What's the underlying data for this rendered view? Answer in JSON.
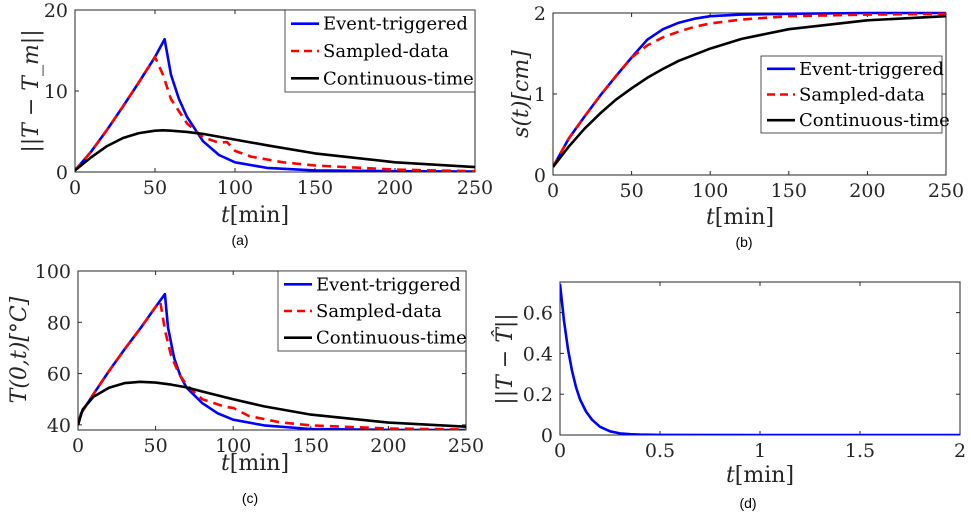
{
  "chart_data": [
    {
      "id": "a",
      "type": "line",
      "caption": "(a)",
      "xlabel_var": "t",
      "xlabel_unit": "[min]",
      "ylabel": "||T − T_m||",
      "xlim": [
        0,
        250
      ],
      "ylim": [
        0,
        20
      ],
      "xticks": [
        "0",
        "50",
        "100",
        "150",
        "200",
        "250"
      ],
      "yticks": [
        "0",
        "10",
        "20"
      ],
      "legend_position": "top-right",
      "series": [
        {
          "name": "Event-triggered",
          "color": "#0000ff",
          "dash": "solid",
          "x": [
            0,
            10,
            20,
            30,
            40,
            50,
            56,
            60,
            65,
            70,
            80,
            90,
            100,
            120,
            150,
            200,
            250
          ],
          "y": [
            0.2,
            2.5,
            5.2,
            8.1,
            11.1,
            14.2,
            16.4,
            12.0,
            9.0,
            6.8,
            3.8,
            2.1,
            1.2,
            0.5,
            0.2,
            0.1,
            0.05
          ]
        },
        {
          "name": "Sampled-data",
          "color": "#ff0000",
          "dash": "dashed",
          "x": [
            0,
            10,
            20,
            30,
            40,
            50,
            55,
            60,
            70,
            80,
            90,
            95,
            100,
            110,
            130,
            150,
            200,
            250
          ],
          "y": [
            0.2,
            2.5,
            5.2,
            8.1,
            11.1,
            14.2,
            12.0,
            9.0,
            6.0,
            4.3,
            3.6,
            3.7,
            2.6,
            1.9,
            1.2,
            0.8,
            0.3,
            0.1
          ]
        },
        {
          "name": "Continuous-time",
          "color": "#000000",
          "dash": "solid",
          "x": [
            0,
            10,
            20,
            30,
            40,
            50,
            55,
            60,
            70,
            80,
            100,
            120,
            150,
            200,
            250
          ],
          "y": [
            0.2,
            1.8,
            3.2,
            4.2,
            4.8,
            5.1,
            5.15,
            5.1,
            4.95,
            4.7,
            4.0,
            3.3,
            2.3,
            1.2,
            0.6
          ]
        }
      ]
    },
    {
      "id": "b",
      "type": "line",
      "caption": "(b)",
      "xlabel_var": "t",
      "xlabel_unit": "[min]",
      "ylabel": "s(t)[cm]",
      "xlim": [
        0,
        250
      ],
      "ylim": [
        0,
        2
      ],
      "xticks": [
        "0",
        "50",
        "100",
        "150",
        "200",
        "250"
      ],
      "yticks": [
        "0",
        "1",
        "2"
      ],
      "legend_position": "middle-right",
      "series": [
        {
          "name": "Event-triggered",
          "color": "#0000ff",
          "dash": "solid",
          "x": [
            0,
            10,
            20,
            30,
            40,
            50,
            60,
            70,
            80,
            90,
            100,
            120,
            150,
            200,
            250
          ],
          "y": [
            0.1,
            0.45,
            0.72,
            0.98,
            1.22,
            1.45,
            1.67,
            1.8,
            1.88,
            1.93,
            1.96,
            1.98,
            1.99,
            2.0,
            2.0
          ]
        },
        {
          "name": "Sampled-data",
          "color": "#ff0000",
          "dash": "dashed",
          "x": [
            0,
            10,
            20,
            30,
            40,
            50,
            60,
            70,
            80,
            90,
            100,
            120,
            150,
            200,
            250
          ],
          "y": [
            0.1,
            0.45,
            0.72,
            0.98,
            1.22,
            1.45,
            1.6,
            1.7,
            1.77,
            1.83,
            1.87,
            1.92,
            1.96,
            1.98,
            1.99
          ]
        },
        {
          "name": "Continuous-time",
          "color": "#000000",
          "dash": "solid",
          "x": [
            0,
            10,
            20,
            30,
            40,
            50,
            60,
            70,
            80,
            100,
            120,
            150,
            200,
            250
          ],
          "y": [
            0.1,
            0.35,
            0.57,
            0.76,
            0.93,
            1.07,
            1.2,
            1.31,
            1.41,
            1.56,
            1.68,
            1.8,
            1.91,
            1.96
          ]
        }
      ]
    },
    {
      "id": "c",
      "type": "line",
      "caption": "(c)",
      "xlabel_var": "t",
      "xlabel_unit": "[min]",
      "ylabel": "T(0,t)[°C]",
      "xlim": [
        0,
        250
      ],
      "ylim": [
        38,
        100
      ],
      "xticks": [
        "0",
        "50",
        "100",
        "150",
        "200",
        "250"
      ],
      "yticks": [
        "40",
        "60",
        "80",
        "100"
      ],
      "legend_position": "top-right",
      "series": [
        {
          "name": "Event-triggered",
          "color": "#0000ff",
          "dash": "solid",
          "x": [
            0,
            2,
            10,
            20,
            30,
            40,
            50,
            56,
            58,
            62,
            66,
            70,
            80,
            90,
            100,
            120,
            150,
            200,
            250
          ],
          "y": [
            40,
            44.5,
            52,
            61,
            69.5,
            77.5,
            86,
            91,
            78,
            66,
            59,
            54.5,
            48.5,
            44.5,
            42,
            39.8,
            38.4,
            38.05,
            38
          ]
        },
        {
          "name": "Sampled-data",
          "color": "#ff0000",
          "dash": "dashed",
          "x": [
            0,
            2,
            10,
            20,
            30,
            40,
            50,
            53,
            56,
            60,
            65,
            70,
            80,
            95,
            100,
            110,
            130,
            150,
            200,
            250
          ],
          "y": [
            40,
            44.5,
            52,
            61,
            69.5,
            77.5,
            86,
            88,
            77,
            67,
            60,
            55.5,
            50,
            47,
            46.6,
            43.5,
            41,
            39.8,
            38.6,
            38.2
          ]
        },
        {
          "name": "Continuous-time",
          "color": "#000000",
          "dash": "solid",
          "x": [
            0,
            3,
            10,
            20,
            30,
            40,
            50,
            60,
            70,
            80,
            100,
            120,
            150,
            200,
            250
          ],
          "y": [
            40,
            46,
            51,
            54.5,
            56.3,
            56.8,
            56.5,
            55.7,
            54.6,
            53,
            50,
            47.2,
            44,
            40.9,
            39.3
          ]
        }
      ]
    },
    {
      "id": "d",
      "type": "line",
      "caption": "(d)",
      "xlabel_var": "t",
      "xlabel_unit": "[min]",
      "ylabel": "||T − T̂||",
      "xlim": [
        0,
        2
      ],
      "ylim": [
        0,
        0.75
      ],
      "xticks": [
        "0",
        "0.5",
        "1",
        "1.5",
        "2"
      ],
      "yticks": [
        "0",
        "0.2",
        "0.4",
        "0.6"
      ],
      "series": [
        {
          "color": "#0000ff",
          "dash": "solid",
          "x": [
            0,
            0.02,
            0.04,
            0.06,
            0.08,
            0.1,
            0.13,
            0.16,
            0.2,
            0.25,
            0.3,
            0.35,
            0.4,
            0.5,
            1.0,
            1.5,
            2.0
          ],
          "y": [
            0.74,
            0.56,
            0.42,
            0.315,
            0.235,
            0.175,
            0.115,
            0.075,
            0.04,
            0.018,
            0.008,
            0.004,
            0.002,
            0.0005,
            0,
            0,
            0
          ]
        }
      ]
    }
  ]
}
